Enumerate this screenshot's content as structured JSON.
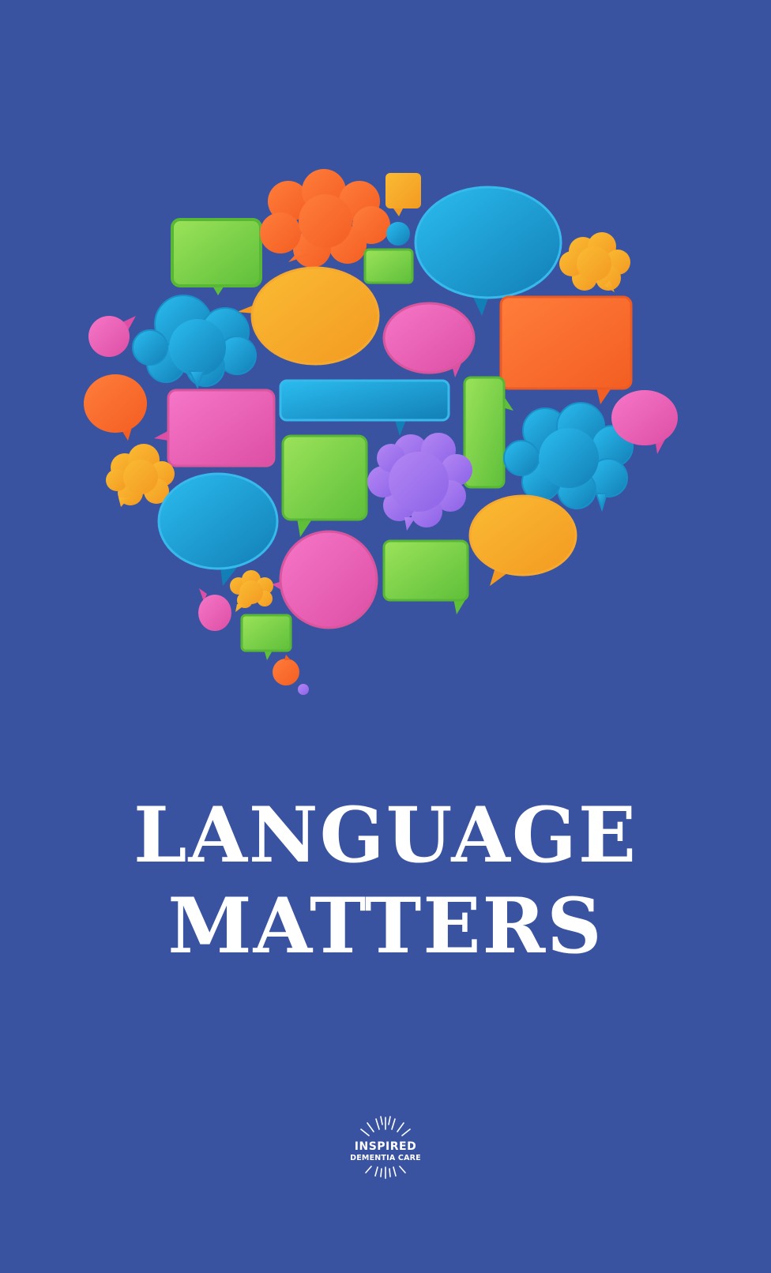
{
  "title": {
    "line1": "LANGUAGE",
    "line2": "MATTERS"
  },
  "logo": {
    "line1": "INSPIRED",
    "line2": "DEMENTIA CARE"
  },
  "colors": {
    "background": "#3a53a1",
    "green": "#7ed34c",
    "orange": "#fb6a2c",
    "blue": "#1fa3d8",
    "yellow": "#f7ab2a",
    "pink": "#ec63b9",
    "purple": "#a777ee"
  }
}
